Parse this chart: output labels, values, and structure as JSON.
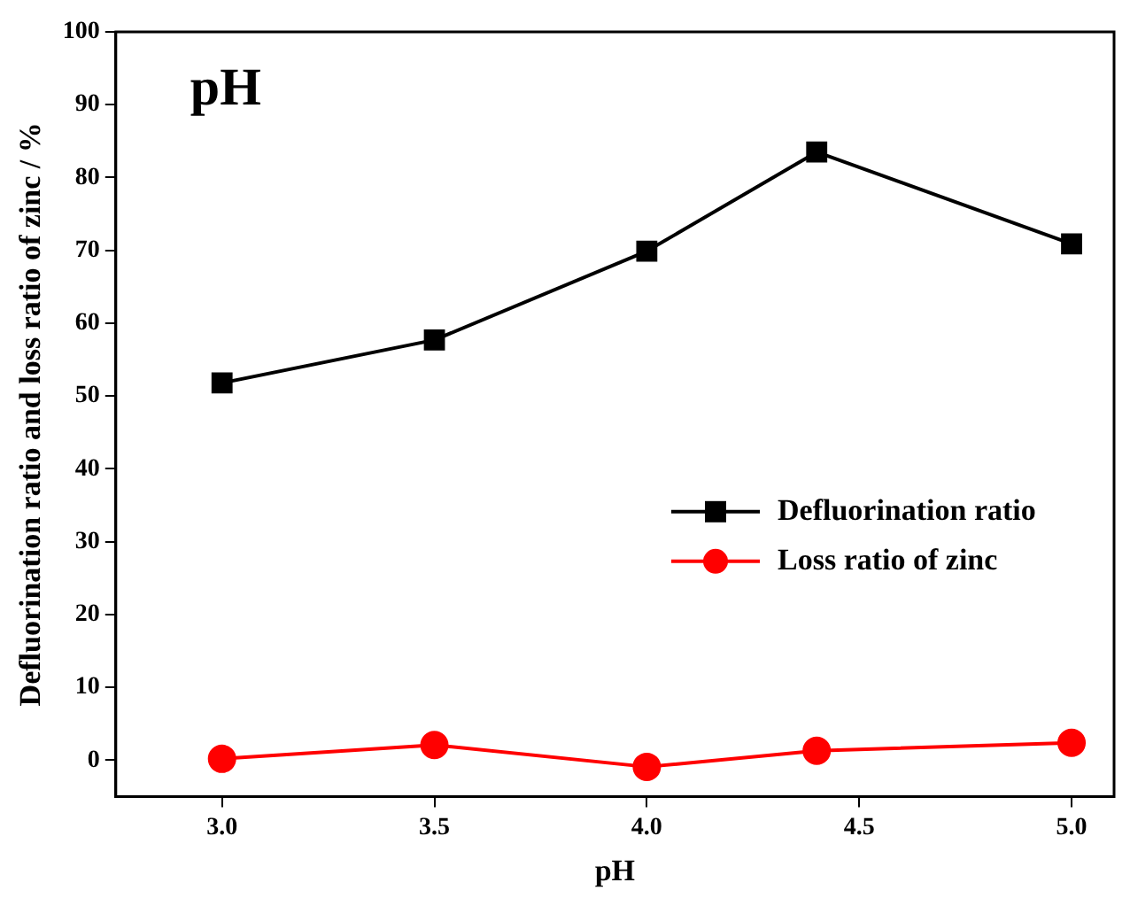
{
  "chart_data": {
    "type": "line",
    "xlabel": "pH",
    "ylabel": "Defluorination ratio and loss ratio of zinc / %",
    "annotations": [
      "pH"
    ],
    "x": [
      3.0,
      3.5,
      4.0,
      4.4,
      5.0
    ],
    "series": [
      {
        "name": "Defluorination ratio",
        "color": "#000000",
        "marker": "square",
        "values": [
          51.8,
          57.7,
          69.9,
          83.5,
          70.9
        ]
      },
      {
        "name": "Loss ratio of zinc",
        "color": "#ff0000",
        "marker": "circle",
        "values": [
          0.2,
          2.1,
          -0.9,
          1.3,
          2.4
        ]
      }
    ],
    "xlim": [
      2.75,
      5.1
    ],
    "xticks": [
      {
        "value": 3.0,
        "label": "3.0"
      },
      {
        "value": 3.5,
        "label": "3.5"
      },
      {
        "value": 4.0,
        "label": "4.0"
      },
      {
        "value": 4.5,
        "label": "4.5"
      },
      {
        "value": 5.0,
        "label": "5.0"
      }
    ],
    "ylim": [
      -5,
      100
    ],
    "yticks": [
      0,
      10,
      20,
      30,
      40,
      50,
      60,
      70,
      80,
      90,
      100
    ],
    "grid": false,
    "legend": "center right",
    "line_style": "solid"
  }
}
